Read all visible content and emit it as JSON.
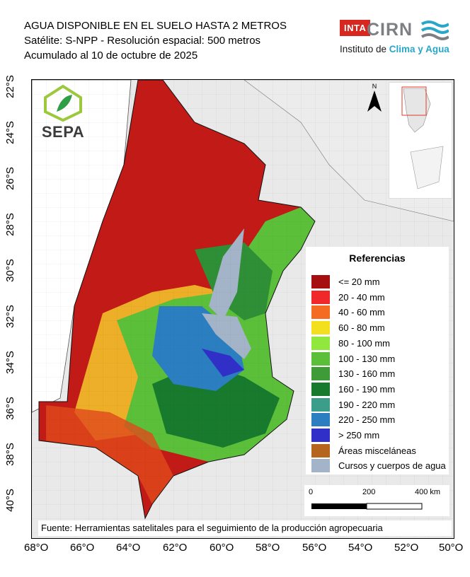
{
  "header": {
    "title_line1": "AGUA DISPONIBLE EN EL SUELO HASTA 2 METROS",
    "title_line2": "Satélite: S-NPP - Resolución espacial: 500 metros",
    "title_line3": "Acumulado al 10 de octubre de 2025"
  },
  "logos": {
    "inta": "INTA",
    "cirn": "CIRN",
    "institute_prefix": "Instituto de ",
    "institute_accent": "Clima y Agua",
    "sepa": "SEPA",
    "north": "N"
  },
  "axes": {
    "latitude_ticks": [
      "22°S",
      "24°S",
      "26°S",
      "28°S",
      "30°S",
      "32°S",
      "34°S",
      "36°S",
      "38°S",
      "40°S"
    ],
    "longitude_ticks": [
      "68°O",
      "66°O",
      "64°O",
      "62°O",
      "60°O",
      "58°O",
      "56°O",
      "54°O",
      "52°O",
      "50°O"
    ]
  },
  "legend": {
    "title": "Referencias",
    "items": [
      {
        "label": "<= 20 mm",
        "color": "#a50f0f"
      },
      {
        "label": "20 - 40 mm",
        "color": "#f0282a"
      },
      {
        "label": "40 - 60 mm",
        "color": "#f56b22"
      },
      {
        "label": "60 - 80 mm",
        "color": "#f2e01f"
      },
      {
        "label": "80 - 100 mm",
        "color": "#8fe83b"
      },
      {
        "label": "100 - 130 mm",
        "color": "#5cbf3a"
      },
      {
        "label": "130 - 160 mm",
        "color": "#3f9a38"
      },
      {
        "label": "160 - 190 mm",
        "color": "#177a2c"
      },
      {
        "label": "190 - 220 mm",
        "color": "#3b9e8a"
      },
      {
        "label": "220 - 250 mm",
        "color": "#2b7fc0"
      },
      {
        "label": "> 250 mm",
        "color": "#3030c8"
      },
      {
        "label": "Áreas misceláneas",
        "color": "#b5651d"
      },
      {
        "label": "Cursos y cuerpos de agua",
        "color": "#a4b4c8"
      }
    ]
  },
  "scale_bar": {
    "labels": [
      "0",
      "200",
      "400 km"
    ]
  },
  "footer": {
    "source": "Fuente: Herramientas satelitales para el seguimiento de la producción agropecuaria"
  }
}
